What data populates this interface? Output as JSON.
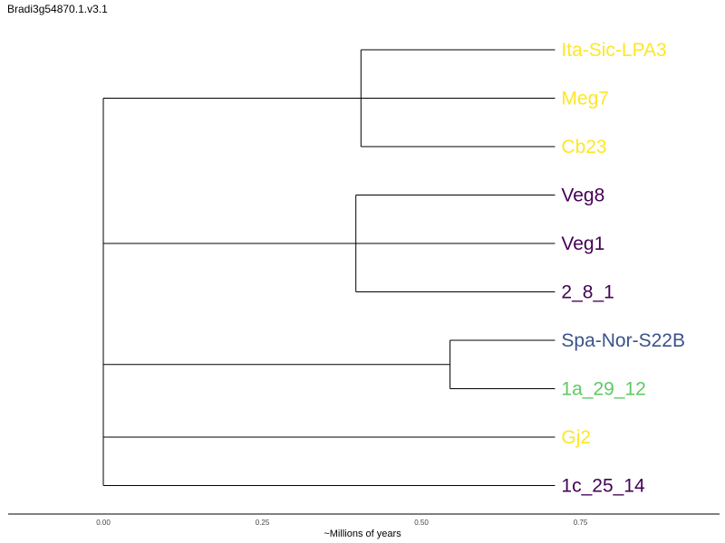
{
  "title": "Bradi3g54870.1.v3.1",
  "axis": {
    "label": "~Millions of years",
    "ticks": [
      0.0,
      0.25,
      0.5,
      0.75
    ],
    "tick_labels": [
      "0.00",
      "0.25",
      "0.50",
      "0.75"
    ],
    "range": [
      -0.15,
      0.97
    ]
  },
  "tree": {
    "tip_x": 0.71,
    "clades": [
      {
        "node_x": 0.405,
        "tips": [
          {
            "name": "Ita-Sic-LPA3",
            "color": "#fde725"
          },
          {
            "name": "Meg7",
            "color": "#fde725"
          },
          {
            "name": "Cb23",
            "color": "#fde725"
          }
        ]
      },
      {
        "node_x": 0.397,
        "tips": [
          {
            "name": "Veg8",
            "color": "#440154"
          },
          {
            "name": "Veg1",
            "color": "#440154"
          },
          {
            "name": "2_8_1",
            "color": "#440154"
          }
        ]
      },
      {
        "node_x": 0.545,
        "tips": [
          {
            "name": "Spa-Nor-S22B",
            "color": "#3b528b"
          },
          {
            "name": "1a_29_12",
            "color": "#5ec962"
          }
        ]
      },
      {
        "node_x": null,
        "tips": [
          {
            "name": "Gj2",
            "color": "#fde725"
          }
        ]
      },
      {
        "node_x": null,
        "tips": [
          {
            "name": "1c_25_14",
            "color": "#440154"
          }
        ]
      }
    ]
  }
}
